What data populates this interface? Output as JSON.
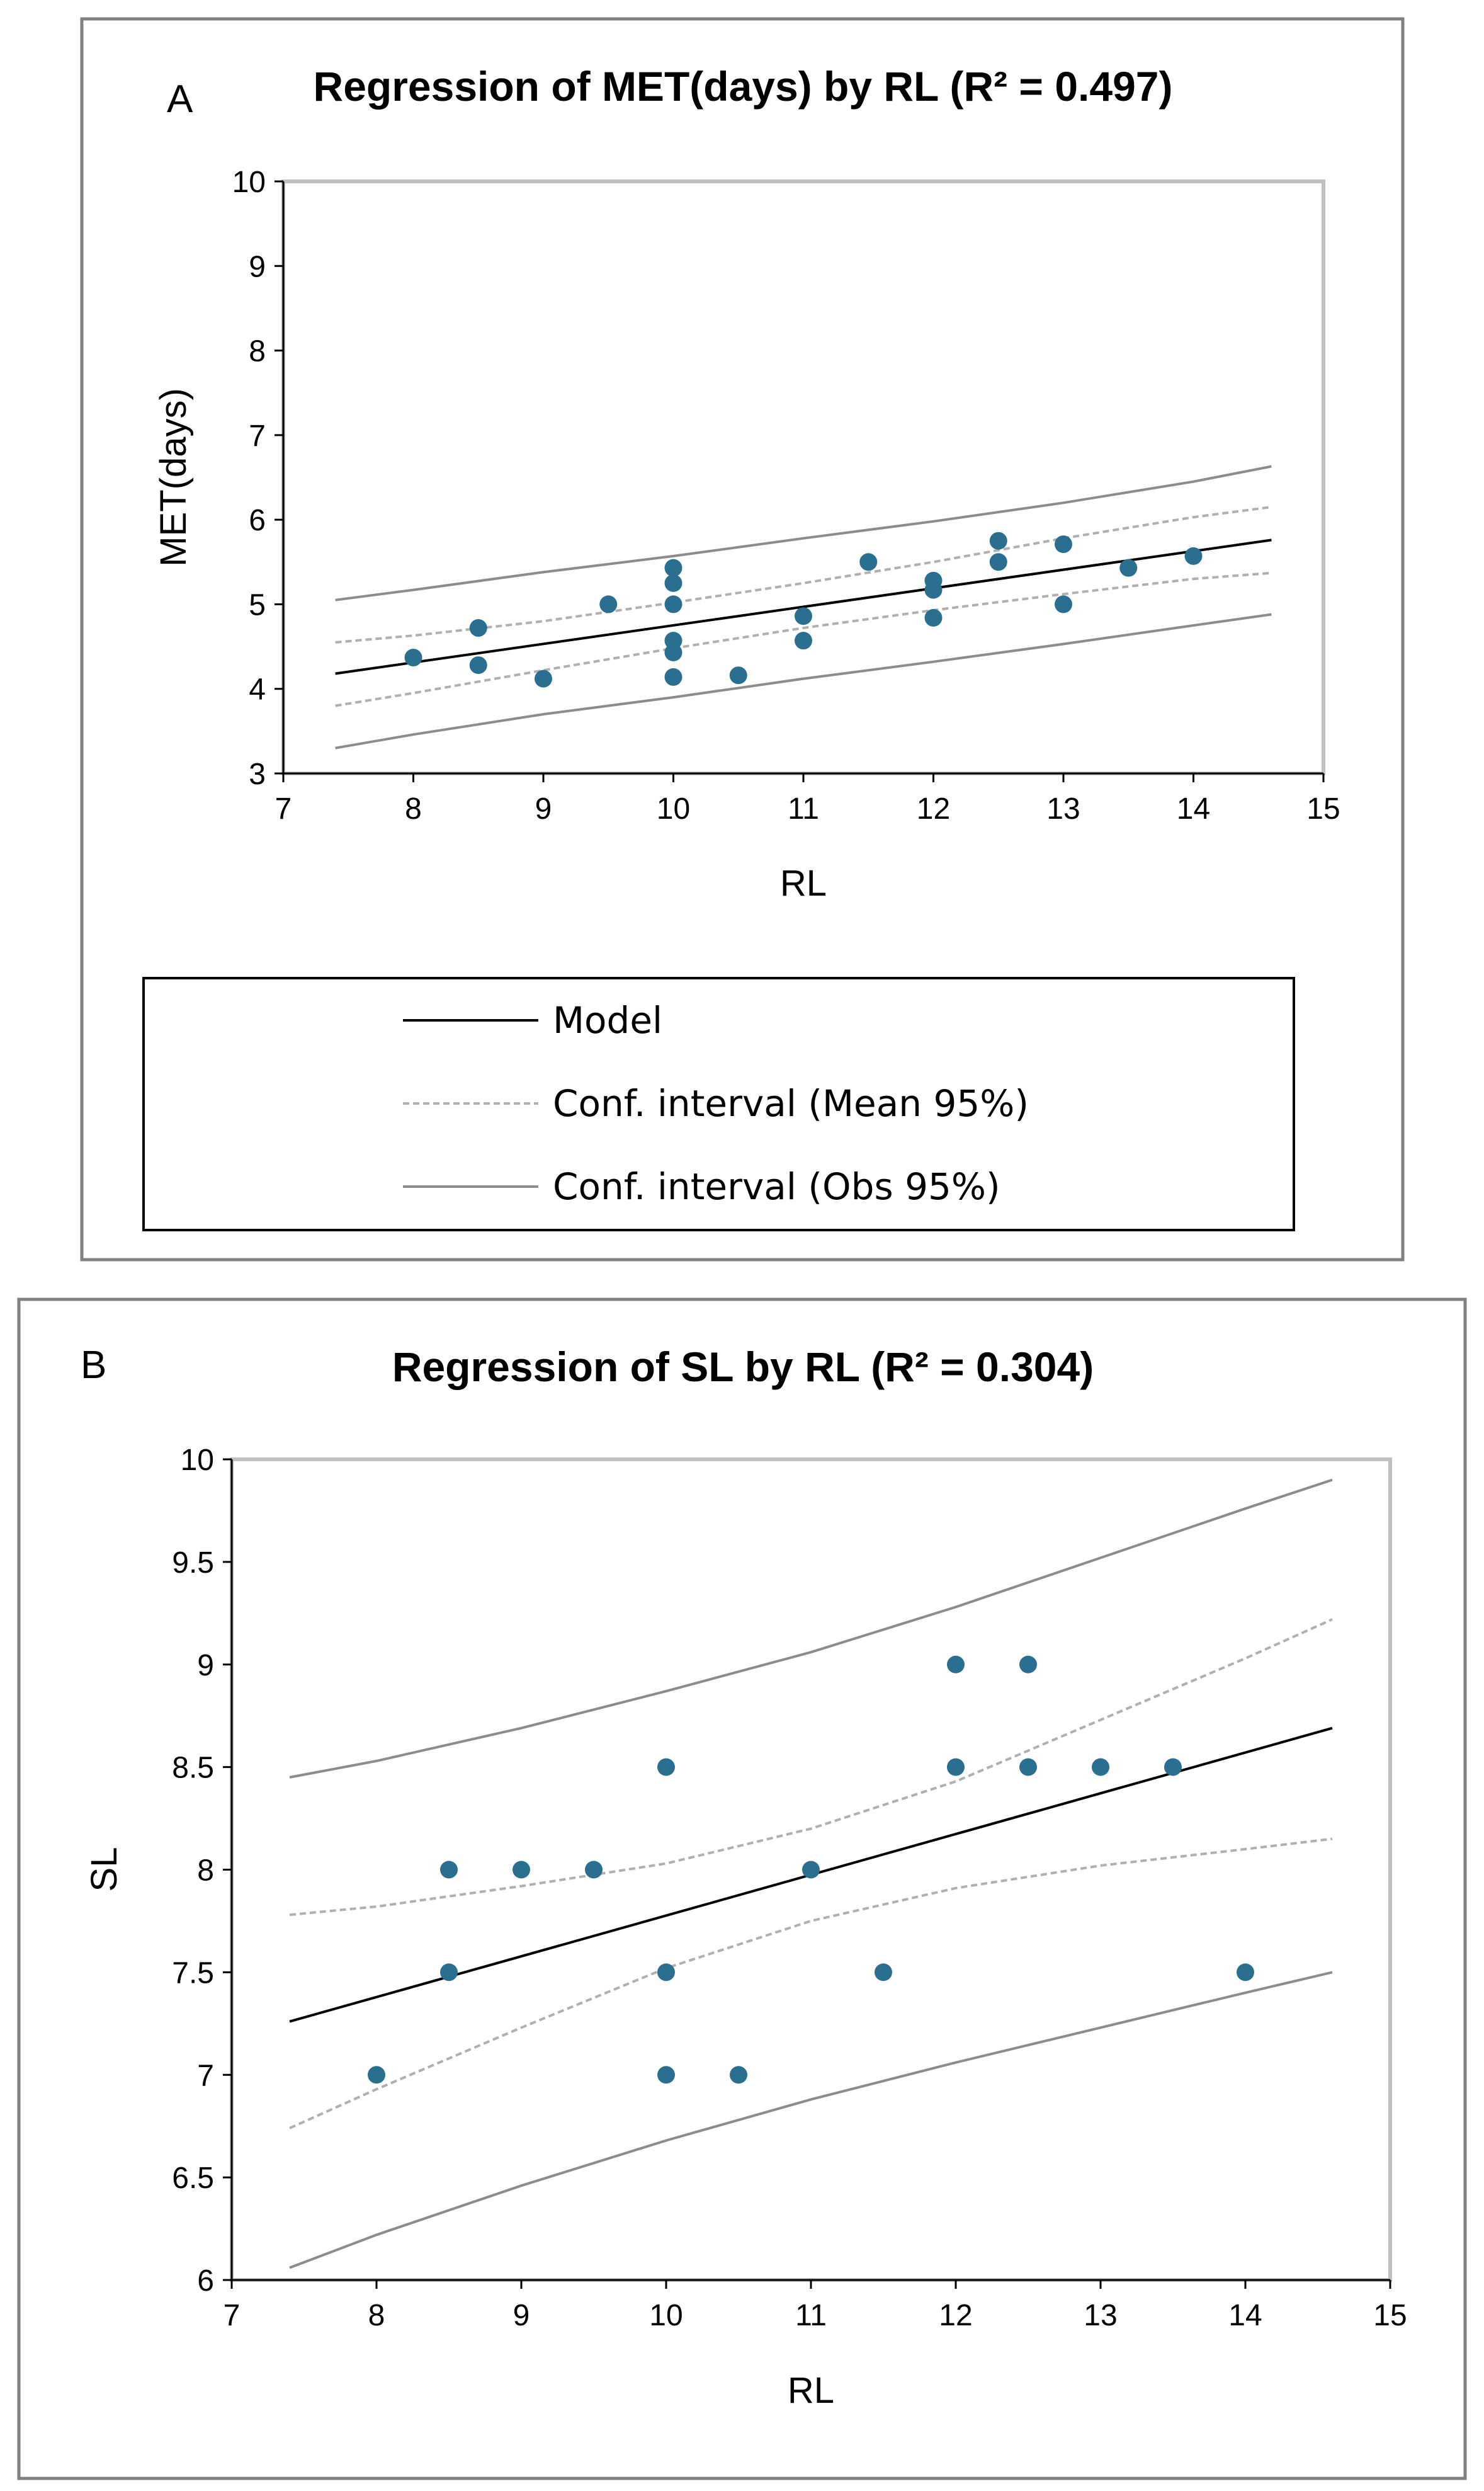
{
  "colors": {
    "points": "#2a6f8f",
    "model": "#000000",
    "ci_mean": "#b0b0b0",
    "ci_obs": "#8c8c8c",
    "plot_border": "#c0c0c0",
    "panel_border": "#808080"
  },
  "legend": {
    "model": "Model",
    "ci_mean": "Conf. interval (Mean 95%)",
    "ci_obs": "Conf. interval (Obs 95%)"
  },
  "chart_data": [
    {
      "id": "A",
      "panel_label": "A",
      "type": "scatter",
      "title": "Regression of MET(days) by RL (R² = 0.497)",
      "xlabel": "RL",
      "ylabel": "MET(days)",
      "xlim": [
        7,
        15
      ],
      "ylim": [
        3,
        10
      ],
      "xticks": [
        "7",
        "8",
        "9",
        "10",
        "11",
        "12",
        "13",
        "14",
        "15"
      ],
      "yticks": [
        "3",
        "4",
        "5",
        "6",
        "7",
        "8",
        "9",
        "10"
      ],
      "points": [
        {
          "x": 8,
          "y": 4.37
        },
        {
          "x": 8.5,
          "y": 4.72
        },
        {
          "x": 8.5,
          "y": 4.28
        },
        {
          "x": 9,
          "y": 4.12
        },
        {
          "x": 9.5,
          "y": 5.0
        },
        {
          "x": 10,
          "y": 5.43
        },
        {
          "x": 10,
          "y": 5.25
        },
        {
          "x": 10,
          "y": 5.0
        },
        {
          "x": 10,
          "y": 4.57
        },
        {
          "x": 10,
          "y": 4.43
        },
        {
          "x": 10,
          "y": 4.14
        },
        {
          "x": 10.5,
          "y": 4.16
        },
        {
          "x": 11,
          "y": 4.86
        },
        {
          "x": 11,
          "y": 4.57
        },
        {
          "x": 11.5,
          "y": 5.5
        },
        {
          "x": 12,
          "y": 5.28
        },
        {
          "x": 12,
          "y": 5.17
        },
        {
          "x": 12,
          "y": 4.84
        },
        {
          "x": 12.5,
          "y": 5.75
        },
        {
          "x": 12.5,
          "y": 5.5
        },
        {
          "x": 13,
          "y": 5.71
        },
        {
          "x": 13,
          "y": 5.0
        },
        {
          "x": 13.5,
          "y": 5.43
        },
        {
          "x": 14,
          "y": 5.57
        }
      ],
      "model": {
        "x": [
          7.4,
          14.6
        ],
        "y": [
          4.18,
          5.76
        ]
      },
      "ci_mean_upper": {
        "x": [
          7.4,
          8,
          9,
          10,
          11,
          12,
          13,
          14,
          14.6
        ],
        "y": [
          4.55,
          4.63,
          4.8,
          5.02,
          5.25,
          5.5,
          5.78,
          6.03,
          6.15
        ]
      },
      "ci_mean_lower": {
        "x": [
          7.4,
          8,
          9,
          10,
          11,
          12,
          13,
          14,
          14.6
        ],
        "y": [
          3.8,
          3.95,
          4.22,
          4.48,
          4.72,
          4.93,
          5.12,
          5.3,
          5.37
        ]
      },
      "ci_obs_upper": {
        "x": [
          7.4,
          8,
          9,
          10,
          11,
          12,
          13,
          14,
          14.6
        ],
        "y": [
          5.05,
          5.17,
          5.38,
          5.57,
          5.78,
          5.98,
          6.2,
          6.45,
          6.63
        ]
      },
      "ci_obs_lower": {
        "x": [
          7.4,
          8,
          9,
          10,
          11,
          12,
          13,
          14,
          14.6
        ],
        "y": [
          3.3,
          3.46,
          3.7,
          3.9,
          4.12,
          4.32,
          4.53,
          4.75,
          4.88
        ]
      }
    },
    {
      "id": "B",
      "panel_label": "B",
      "type": "scatter",
      "title": "Regression of SL by RL (R² = 0.304)",
      "xlabel": "RL",
      "ylabel": "SL",
      "xlim": [
        7,
        15
      ],
      "ylim": [
        6,
        10
      ],
      "xticks": [
        "7",
        "8",
        "9",
        "10",
        "11",
        "12",
        "13",
        "14",
        "15"
      ],
      "yticks": [
        "6",
        "6.5",
        "7",
        "7.5",
        "8",
        "8.5",
        "9",
        "9.5",
        "10"
      ],
      "points": [
        {
          "x": 8,
          "y": 7.0
        },
        {
          "x": 8.5,
          "y": 8.0
        },
        {
          "x": 8.5,
          "y": 7.5
        },
        {
          "x": 9,
          "y": 8.0
        },
        {
          "x": 9.5,
          "y": 8.0
        },
        {
          "x": 10,
          "y": 8.5
        },
        {
          "x": 10,
          "y": 7.5
        },
        {
          "x": 10,
          "y": 7.0
        },
        {
          "x": 10.5,
          "y": 7.0
        },
        {
          "x": 11,
          "y": 8.0
        },
        {
          "x": 11.5,
          "y": 7.5
        },
        {
          "x": 12,
          "y": 9.0
        },
        {
          "x": 12,
          "y": 8.5
        },
        {
          "x": 12.5,
          "y": 9.0
        },
        {
          "x": 12.5,
          "y": 8.5
        },
        {
          "x": 13,
          "y": 8.5
        },
        {
          "x": 13.5,
          "y": 8.5
        },
        {
          "x": 14,
          "y": 7.5
        }
      ],
      "model": {
        "x": [
          7.4,
          14.6
        ],
        "y": [
          7.26,
          8.69
        ]
      },
      "ci_mean_upper": {
        "x": [
          7.4,
          8,
          9,
          10,
          11,
          12,
          13,
          14,
          14.6
        ],
        "y": [
          7.78,
          7.82,
          7.92,
          8.03,
          8.2,
          8.43,
          8.73,
          9.03,
          9.22
        ]
      },
      "ci_mean_lower": {
        "x": [
          7.4,
          8,
          9,
          10,
          11,
          12,
          13,
          14,
          14.6
        ],
        "y": [
          6.74,
          6.93,
          7.23,
          7.52,
          7.75,
          7.91,
          8.02,
          8.1,
          8.15
        ]
      },
      "ci_obs_upper": {
        "x": [
          7.4,
          8,
          9,
          10,
          11,
          12,
          13,
          14,
          14.6
        ],
        "y": [
          8.45,
          8.53,
          8.69,
          8.87,
          9.06,
          9.28,
          9.52,
          9.76,
          9.9
        ]
      },
      "ci_obs_lower": {
        "x": [
          7.4,
          8,
          9,
          10,
          11,
          12,
          13,
          14,
          14.6
        ],
        "y": [
          6.06,
          6.22,
          6.46,
          6.68,
          6.88,
          7.06,
          7.23,
          7.4,
          7.5
        ]
      }
    }
  ]
}
